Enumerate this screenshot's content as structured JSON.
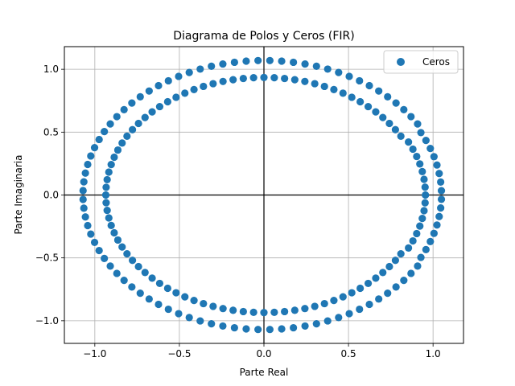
{
  "chart_data": {
    "type": "scatter",
    "title": "Diagrama de Polos y Ceros (FIR)",
    "xlabel": "Parte Real",
    "ylabel": "Parte Imaginaria",
    "xlim": [
      -1.18,
      1.18
    ],
    "ylim": [
      -1.18,
      1.18
    ],
    "grid": true,
    "legend_position": "top-right",
    "xticks": [
      -1.0,
      -0.5,
      0.0,
      0.5,
      1.0
    ],
    "yticks": [
      -1.0,
      -0.5,
      0.0,
      0.5,
      1.0
    ],
    "xtick_labels": [
      "−1.0",
      "−0.5",
      "0.0",
      "0.5",
      "1.0"
    ],
    "ytick_labels": [
      "−1.0",
      "−0.5",
      "0.0",
      "0.5",
      "1.0"
    ],
    "colors": {
      "marker": "#1f77b4",
      "grid": "#b0b0b0",
      "axes": "#000000"
    },
    "series": [
      {
        "name": "Ceros",
        "ring_radii": [
          0.935,
          1.07
        ],
        "points_per_ring": 96,
        "points": []
      }
    ]
  }
}
